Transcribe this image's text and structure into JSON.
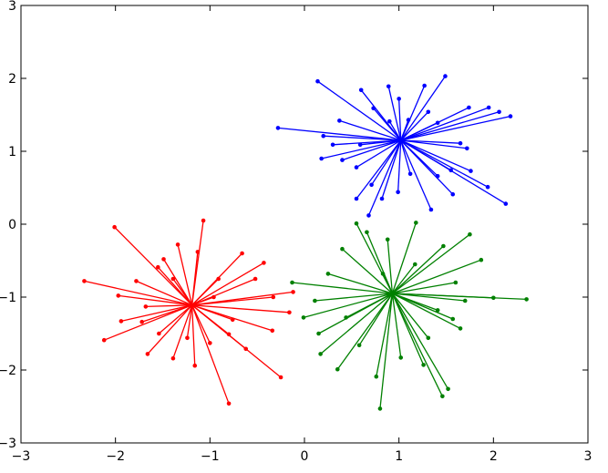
{
  "chart_data": {
    "type": "scatter",
    "xlim": [
      -3,
      3
    ],
    "ylim": [
      -3,
      3
    ],
    "xticks": [
      {
        "value": -3,
        "label": "−3"
      },
      {
        "value": -2,
        "label": "−2"
      },
      {
        "value": -1,
        "label": "−1"
      },
      0,
      1,
      2,
      3
    ],
    "yticks": [
      {
        "value": -3,
        "label": "−3"
      },
      {
        "value": -2,
        "label": "−2"
      },
      {
        "value": -1,
        "label": "−1"
      },
      0,
      1,
      2,
      3
    ],
    "series": [
      {
        "color": "#0000ff",
        "center": [
          1.02,
          1.15
        ],
        "x": [
          1.49,
          0.14,
          -0.28,
          2.18,
          2.13,
          0.68,
          1.57,
          0.18,
          1.0,
          1.95,
          1.74,
          2.06,
          0.55,
          0.82,
          1.34,
          1.94,
          1.72,
          1.76,
          0.37,
          0.2,
          0.6,
          0.89,
          1.41,
          1.27,
          0.55,
          1.55,
          0.71,
          1.12,
          0.99,
          1.41,
          0.4,
          0.73,
          1.31,
          1.65,
          0.3,
          0.9,
          1.1,
          0.59
        ],
        "y": [
          2.03,
          1.96,
          1.32,
          1.48,
          0.28,
          0.12,
          0.41,
          0.9,
          1.72,
          1.6,
          1.6,
          1.54,
          0.35,
          0.35,
          0.2,
          0.51,
          1.04,
          0.73,
          1.42,
          1.21,
          1.84,
          1.89,
          1.39,
          1.9,
          0.78,
          0.74,
          0.54,
          0.69,
          0.44,
          0.66,
          0.88,
          1.59,
          1.54,
          1.11,
          1.09,
          1.41,
          1.43,
          1.09
        ]
      },
      {
        "color": "#ff0000",
        "center": [
          -1.19,
          -1.11
        ],
        "x": [
          -2.33,
          -2.01,
          -2.12,
          -1.07,
          -0.8,
          -0.25,
          -0.12,
          -0.43,
          -0.66,
          -1.94,
          -1.66,
          -1.39,
          -1.16,
          -0.62,
          -0.34,
          -0.16,
          -1.97,
          -1.78,
          -1.55,
          -1.34,
          -1.13,
          -0.91,
          -0.52,
          -1.68,
          -1.54,
          -1.0,
          -0.8,
          -1.24,
          -1.72,
          -0.33,
          -1.39,
          -0.96,
          -0.76,
          -1.49
        ],
        "y": [
          -0.78,
          -0.04,
          -1.59,
          0.05,
          -2.46,
          -2.1,
          -0.93,
          -0.53,
          -0.4,
          -1.33,
          -1.78,
          -1.84,
          -1.94,
          -1.71,
          -1.46,
          -1.21,
          -0.98,
          -0.78,
          -0.59,
          -0.28,
          -0.38,
          -0.75,
          -0.75,
          -1.13,
          -1.5,
          -1.63,
          -1.51,
          -1.56,
          -1.34,
          -1.0,
          -0.75,
          -1.0,
          -1.31,
          -0.48
        ]
      },
      {
        "color": "#008000",
        "center": [
          0.93,
          -0.95
        ],
        "x": [
          0.55,
          2.35,
          0.8,
          1.52,
          1.46,
          0.35,
          0.17,
          -0.13,
          2.0,
          1.87,
          1.75,
          1.18,
          1.47,
          1.65,
          1.57,
          0.4,
          0.66,
          0.88,
          0.15,
          -0.01,
          0.76,
          1.02,
          1.26,
          0.44,
          0.25,
          1.17,
          1.6,
          1.7,
          0.58,
          1.31,
          0.11,
          0.83,
          1.41
        ],
        "y": [
          0.01,
          -1.03,
          -2.53,
          -2.26,
          -2.36,
          -1.99,
          -1.78,
          -0.8,
          -1.01,
          -0.49,
          -0.14,
          0.02,
          -0.3,
          -1.43,
          -1.3,
          -0.34,
          -0.11,
          -0.21,
          -1.5,
          -1.28,
          -2.09,
          -1.83,
          -1.93,
          -1.28,
          -0.68,
          -0.55,
          -0.8,
          -1.05,
          -1.66,
          -1.56,
          -1.05,
          -0.68,
          -1.18
        ]
      }
    ]
  }
}
